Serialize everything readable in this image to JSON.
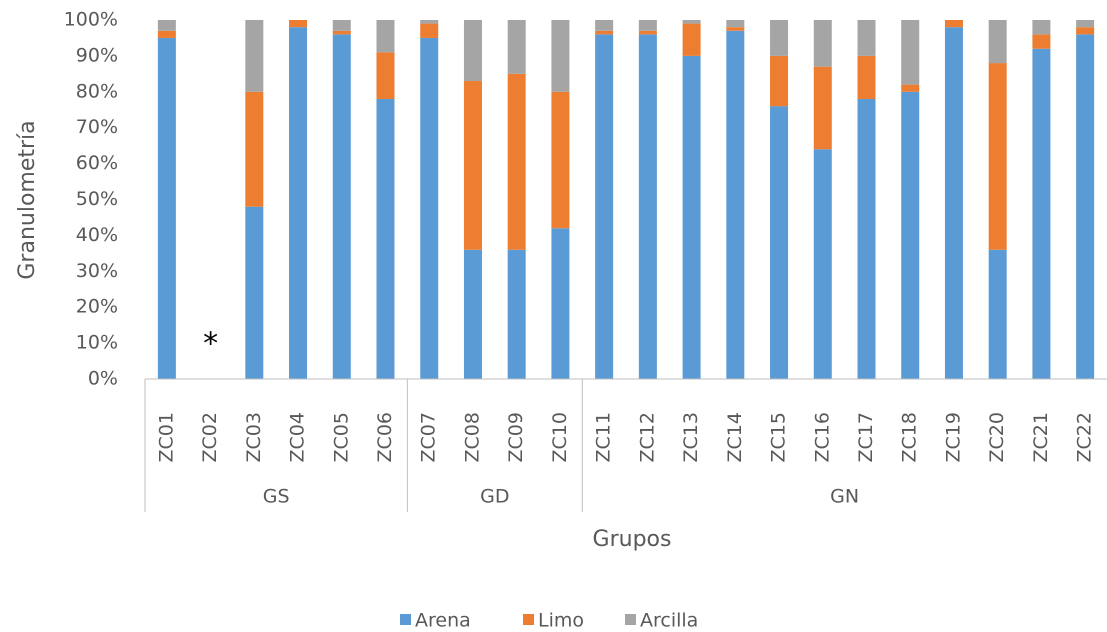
{
  "chart_data": {
    "type": "stacked_bar",
    "y_label": "Granulometría",
    "x_label": "Grupos",
    "categories": [
      "ZC01",
      "ZC02",
      "ZC03",
      "ZC04",
      "ZC05",
      "ZC06",
      "ZC07",
      "ZC08",
      "ZC09",
      "ZC10",
      "ZC11",
      "ZC12",
      "ZC13",
      "ZC14",
      "ZC15",
      "ZC16",
      "ZC17",
      "ZC18",
      "ZC19",
      "ZC20",
      "ZC21",
      "ZC22"
    ],
    "groups": [
      {
        "name": "GS",
        "count": 6
      },
      {
        "name": "GD",
        "count": 4
      },
      {
        "name": "GN",
        "count": 12
      }
    ],
    "series": [
      {
        "name": "Arena",
        "color": "#5b9bd5",
        "values": [
          95,
          null,
          48,
          98,
          96,
          78,
          95,
          36,
          36,
          42,
          96,
          96,
          90,
          97,
          76,
          64,
          78,
          80,
          98,
          36,
          92,
          96
        ]
      },
      {
        "name": "Limo",
        "color": "#ed7d31",
        "values": [
          2,
          null,
          32,
          2,
          1,
          13,
          4,
          47,
          49,
          38,
          1,
          1,
          9,
          1,
          14,
          23,
          12,
          2,
          2,
          52,
          4,
          2
        ]
      },
      {
        "name": "Arcilla",
        "color": "#a5a5a5",
        "values": [
          3,
          null,
          20,
          0,
          3,
          9,
          1,
          17,
          15,
          20,
          3,
          3,
          1,
          2,
          10,
          13,
          10,
          18,
          0,
          12,
          4,
          2
        ]
      }
    ],
    "annotations": [
      {
        "text": "*",
        "x": "ZC02",
        "y": 10
      }
    ],
    "ylim": [
      0,
      100
    ],
    "yticks": [
      {
        "value": 0,
        "label": "0%"
      },
      {
        "value": 10,
        "label": "10%"
      },
      {
        "value": 20,
        "label": "20%"
      },
      {
        "value": 30,
        "label": "30%"
      },
      {
        "value": 40,
        "label": "40%"
      },
      {
        "value": 50,
        "label": "50%"
      },
      {
        "value": 60,
        "label": "60%"
      },
      {
        "value": 70,
        "label": "70%"
      },
      {
        "value": 80,
        "label": "80%"
      },
      {
        "value": 90,
        "label": "90%"
      },
      {
        "value": 100,
        "label": "100%"
      }
    ],
    "grid": false,
    "legend": "bottom"
  }
}
